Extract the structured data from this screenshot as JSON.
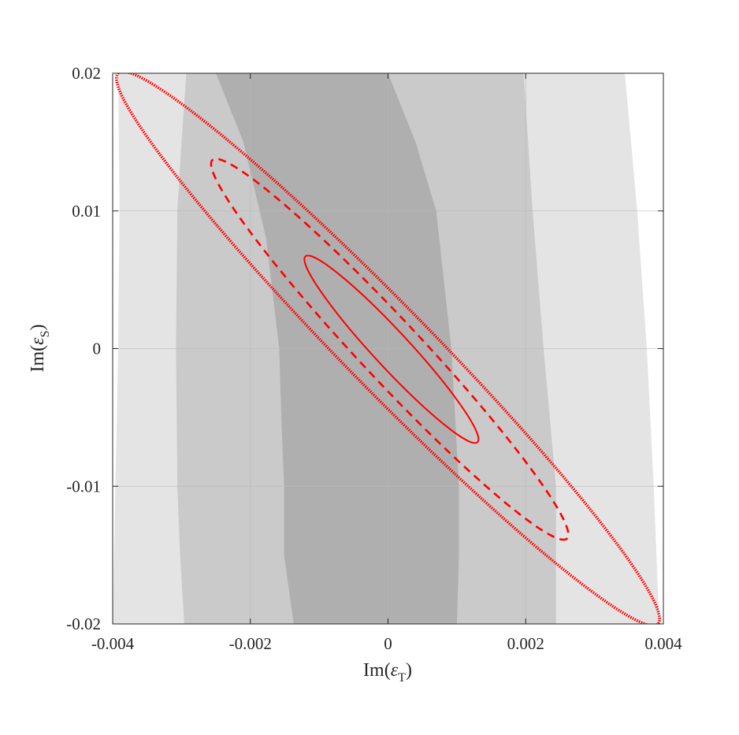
{
  "chart_data": {
    "type": "contour",
    "xlabel": {
      "base": "Im(",
      "symbol": "ε",
      "sub": "T",
      "close": ")"
    },
    "ylabel": {
      "base": "Im(",
      "symbol": "ε",
      "sub": "S",
      "close": ")"
    },
    "xlim": [
      -0.004,
      0.004
    ],
    "ylim": [
      -0.02,
      0.02
    ],
    "xticks": [
      -0.004,
      -0.002,
      0,
      0.002,
      0.004
    ],
    "xtick_labels": [
      "-0.004",
      "-0.002",
      "0",
      "0.002",
      "0.004"
    ],
    "yticks": [
      -0.02,
      -0.01,
      0,
      0.01,
      0.02
    ],
    "ytick_labels": [
      "-0.02",
      "-0.01",
      "0",
      "0.01",
      "0.02"
    ],
    "grid": true,
    "colors": {
      "band_outer": "#e4e4e4",
      "band_middle": "#cacaca",
      "band_inner": "#afafaf",
      "contour": "#ff0000",
      "grid": "#b8b8b8",
      "axis": "#262626"
    },
    "filled_regions": [
      {
        "name": "outer",
        "left": [
          [
            -0.00392,
            0.02
          ],
          [
            -0.0039,
            0.01
          ],
          [
            -0.00392,
            0.0
          ],
          [
            -0.00396,
            -0.01
          ],
          [
            -0.004,
            -0.02
          ]
        ],
        "right": [
          [
            0.00344,
            0.02
          ],
          [
            0.00362,
            0.01
          ],
          [
            0.00376,
            0.0
          ],
          [
            0.00386,
            -0.01
          ],
          [
            0.00394,
            -0.02
          ]
        ]
      },
      {
        "name": "middle",
        "left": [
          [
            -0.00293,
            0.02
          ],
          [
            -0.003,
            0.015
          ],
          [
            -0.00306,
            0.01
          ],
          [
            -0.00308,
            0.0
          ],
          [
            -0.00306,
            -0.01
          ],
          [
            -0.00302,
            -0.015
          ],
          [
            -0.00296,
            -0.02
          ]
        ],
        "right": [
          [
            0.00197,
            0.02
          ],
          [
            0.0021,
            0.01
          ],
          [
            0.00226,
            0.0
          ],
          [
            0.00244,
            -0.01
          ],
          [
            0.00244,
            -0.02
          ]
        ]
      },
      {
        "name": "inner",
        "left": [
          [
            -0.0025,
            0.02
          ],
          [
            -0.0021,
            0.015
          ],
          [
            -0.00177,
            0.008
          ],
          [
            -0.00158,
            0.0
          ],
          [
            -0.00155,
            -0.005
          ],
          [
            -0.00151,
            -0.01
          ],
          [
            -0.00151,
            -0.015
          ],
          [
            -0.00137,
            -0.02
          ]
        ],
        "right": [
          [
            0.0,
            0.02
          ],
          [
            0.0004,
            0.015
          ],
          [
            0.0007,
            0.01
          ],
          [
            0.00092,
            0.0
          ],
          [
            0.00103,
            -0.01
          ],
          [
            0.00103,
            -0.015
          ],
          [
            0.001,
            -0.02
          ]
        ]
      }
    ],
    "contours": [
      {
        "name": "solid",
        "style": "solid",
        "cx": 0.0,
        "cy": 0.0,
        "p1": [
          -0.0012,
          0.0067
        ],
        "p2": [
          0.0013,
          -0.0068
        ],
        "half_width": 0.00026
      },
      {
        "name": "dashed",
        "style": "dashed",
        "cx": 0.0,
        "cy": 0.0,
        "p1": [
          -0.00255,
          0.0137
        ],
        "p2": [
          0.0026,
          -0.0138
        ],
        "half_width": 0.00044
      },
      {
        "name": "dotted",
        "style": "dotted",
        "cx": 0.0,
        "cy": 0.0,
        "p1": [
          -0.00392,
          0.02
        ],
        "p2": [
          0.00392,
          -0.02
        ],
        "half_width": 0.00062
      }
    ]
  }
}
